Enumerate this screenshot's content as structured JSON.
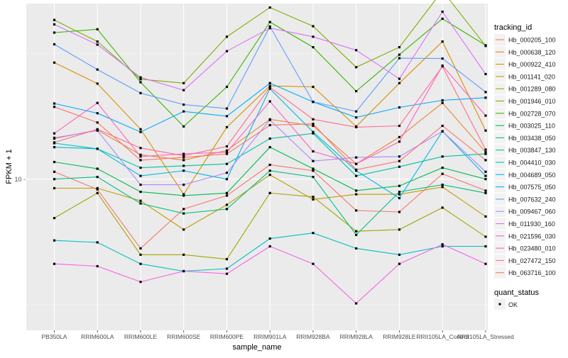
{
  "chart_data": {
    "type": "line",
    "xlabel": "sample_name",
    "ylabel": "FPKM + 1",
    "y_scale": "log",
    "ylim": [
      2.5,
      50
    ],
    "y_ticks": [
      10
    ],
    "y_tick_labels": [
      "10 -"
    ],
    "categories": [
      "PB350LA",
      "RRIM600LA",
      "RRIM600LE",
      "RRIM600SE",
      "RRIM600PE",
      "RRIM901LA",
      "RRIM928BA",
      "RRIM928LA",
      "RRIM928LE",
      "RRII105LA_Control",
      "RRII105LA_Stressed"
    ],
    "category_labels": [
      "PB350LA",
      "RRIM600LA",
      "RRIM600LE",
      "RRIM600SE",
      "RRIM600PE",
      "RRIM901LA",
      "RRIM928BA",
      "RRIM928LA",
      "RRIM928LE",
      "RRII105LA_Control",
      "RRII105LA_Stressed"
    ],
    "grid": true,
    "legend_placement": "right",
    "series": [
      {
        "name": "Hb_000205_100",
        "color": "#F8766D",
        "values": [
          10.7,
          9.1,
          5.3,
          7.6,
          8.6,
          11.4,
          10.8,
          7.5,
          7.4,
          10.5,
          9.0
        ]
      },
      {
        "name": "Hb_000638_120",
        "color": "#EA8331",
        "values": [
          14.5,
          15.7,
          12.5,
          11.9,
          13.0,
          17.3,
          16.3,
          11.5,
          14.7,
          20.1,
          12.8
        ]
      },
      {
        "name": "Hb_000922_410",
        "color": "#D89000",
        "values": [
          29.1,
          24.0,
          15.8,
          8.7,
          16.1,
          23.5,
          23.3,
          16.2,
          24.1,
          35.3,
          15.6
        ]
      },
      {
        "name": "Hb_001141_020",
        "color": "#C09B00",
        "values": [
          9.2,
          9.2,
          8.2,
          6.3,
          7.9,
          10.4,
          8.3,
          8.7,
          8.7,
          9.3,
          7.1
        ]
      },
      {
        "name": "Hb_001289_080",
        "color": "#A3A500",
        "values": [
          7.0,
          8.8,
          5.0,
          5.0,
          4.8,
          8.8,
          8.5,
          6.2,
          6.3,
          7.7,
          5.9
        ]
      },
      {
        "name": "Hb_001946_010",
        "color": "#7CAE00",
        "values": [
          43.0,
          35.3,
          25.0,
          24.1,
          36.9,
          48.2,
          40.6,
          27.9,
          33.5,
          56.2,
          33.9
        ]
      },
      {
        "name": "Hb_002728_070",
        "color": "#39B600",
        "values": [
          38.3,
          39.5,
          24.3,
          16.2,
          23.3,
          42.2,
          33.5,
          22.4,
          31.3,
          43.5,
          34.1
        ]
      },
      {
        "name": "Hb_003025_110",
        "color": "#00BB4E",
        "values": [
          11.7,
          11.0,
          8.9,
          8.6,
          8.8,
          13.4,
          11.0,
          9.0,
          9.4,
          11.1,
          10.0
        ]
      },
      {
        "name": "Hb_003438_050",
        "color": "#00BF7D",
        "values": [
          10.0,
          10.2,
          8.0,
          7.3,
          7.6,
          10.8,
          10.2,
          6.0,
          8.9,
          9.5,
          8.8
        ]
      },
      {
        "name": "Hb_003847_130",
        "color": "#00C1A3",
        "values": [
          13.9,
          13.2,
          11.1,
          11.3,
          11.5,
          14.5,
          15.2,
          10.3,
          11.2,
          12.3,
          12.6
        ]
      },
      {
        "name": "Hb_004410_030",
        "color": "#00BFC4",
        "values": [
          5.7,
          5.6,
          4.6,
          4.3,
          4.4,
          5.8,
          6.1,
          5.3,
          5.0,
          5.4,
          5.4
        ]
      },
      {
        "name": "Hb_004689_050",
        "color": "#00B8E5",
        "values": [
          13.4,
          13.2,
          10.3,
          10.8,
          10.0,
          22.9,
          15.4,
          10.8,
          8.4,
          15.5,
          10.3
        ]
      },
      {
        "name": "Hb_007575_050",
        "color": "#00ADFA",
        "values": [
          20.0,
          18.3,
          15.4,
          18.6,
          17.8,
          24.1,
          20.3,
          17.6,
          19.3,
          20.6,
          21.1
        ]
      },
      {
        "name": "Hb_007632_240",
        "color": "#619CFF",
        "values": [
          34.4,
          27.3,
          22.0,
          19.8,
          19.1,
          40.5,
          20.3,
          18.6,
          30.3,
          30.2,
          22.2
        ]
      },
      {
        "name": "Hb_009467_060",
        "color": "#AE87FF",
        "values": [
          14.6,
          15.6,
          9.5,
          9.5,
          10.6,
          17.2,
          11.8,
          12.2,
          12.3,
          15.5,
          10.7
        ]
      },
      {
        "name": "Hb_011930_160",
        "color": "#DB72FB",
        "values": [
          41.3,
          34.3,
          25.4,
          22.6,
          32.3,
          39.9,
          36.9,
          32.6,
          25.1,
          46.4,
          26.2
        ]
      },
      {
        "name": "Hb_021596_030",
        "color": "#F564E3",
        "values": [
          4.6,
          4.5,
          3.9,
          4.3,
          4.2,
          5.4,
          4.6,
          3.2,
          4.6,
          5.5,
          4.6
        ]
      },
      {
        "name": "Hb_023480_010",
        "color": "#FF61C3",
        "values": [
          15.2,
          20.1,
          12.3,
          12.6,
          12.8,
          20.4,
          12.9,
          11.5,
          14.1,
          28.3,
          17.9
        ]
      },
      {
        "name": "Hb_027472_150",
        "color": "#FF6C91",
        "values": [
          14.0,
          15.8,
          13.3,
          12.4,
          13.5,
          23.2,
          17.3,
          16.1,
          16.3,
          28.1,
          13.1
        ]
      },
      {
        "name": "Hb_063716_100",
        "color": "#F8766D",
        "values": [
          19.4,
          16.8,
          11.9,
          12.2,
          12.6,
          16.4,
          16.6,
          10.9,
          11.8,
          16.3,
          11.9
        ]
      }
    ]
  },
  "legend": {
    "title": "tracking_id",
    "status_title": "quant_status",
    "status_label": "OK"
  },
  "colors": {
    "panel_bg": "#EBEBEB",
    "grid_major": "#FFFFFF",
    "grid_minor": "#F5F5F5",
    "point": "#000000"
  }
}
